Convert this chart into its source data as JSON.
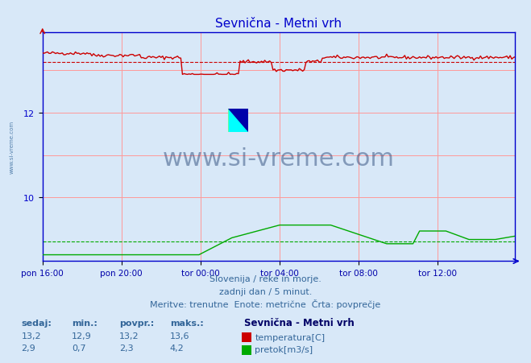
{
  "title": "Sevnična - Metni vrh",
  "bg_color": "#d8e8f8",
  "plot_bg_color": "#d8e8f8",
  "grid_color": "#ff9999",
  "axis_color": "#0000cc",
  "title_color": "#0000cc",
  "xlabel_color": "#0000aa",
  "text_color": "#336699",
  "watermark": "www.si-vreme.com",
  "subtitle1": "Slovenija / reke in morje.",
  "subtitle2": "zadnji dan / 5 minut.",
  "subtitle3": "Meritve: trenutne  Enote: metrične  Črta: povprečje",
  "legend_title": "Sevnična - Metni vrh",
  "legend_items": [
    {
      "label": "temperatura[C]",
      "color": "#cc0000"
    },
    {
      "label": "pretok[m3/s]",
      "color": "#00aa00"
    }
  ],
  "stats_headers": [
    "sedaj:",
    "min.:",
    "povpr.:",
    "maks.:"
  ],
  "stats_temp": [
    "13,2",
    "12,9",
    "13,2",
    "13,6"
  ],
  "stats_pretok": [
    "2,9",
    "0,7",
    "2,3",
    "4,2"
  ],
  "xlim": [
    0,
    287
  ],
  "ylim": [
    8.5,
    13.9
  ],
  "temp_avg": 13.2,
  "pretok_avg": 2.3,
  "temp_color": "#cc0000",
  "pretok_color": "#00aa00",
  "temp_min": 12.9,
  "temp_max": 13.6,
  "pretok_min": 0.7,
  "pretok_max": 4.2,
  "pretok_vis_min": 8.65,
  "pretok_vis_max": 9.35,
  "xtick_labels": [
    "pon 16:00",
    "pon 20:00",
    "tor 00:00",
    "tor 04:00",
    "tor 08:00",
    "tor 12:00"
  ],
  "xtick_positions": [
    0,
    48,
    96,
    144,
    192,
    240
  ],
  "ytick_labels": [
    "10",
    "12"
  ],
  "ytick_positions": [
    10,
    12
  ]
}
